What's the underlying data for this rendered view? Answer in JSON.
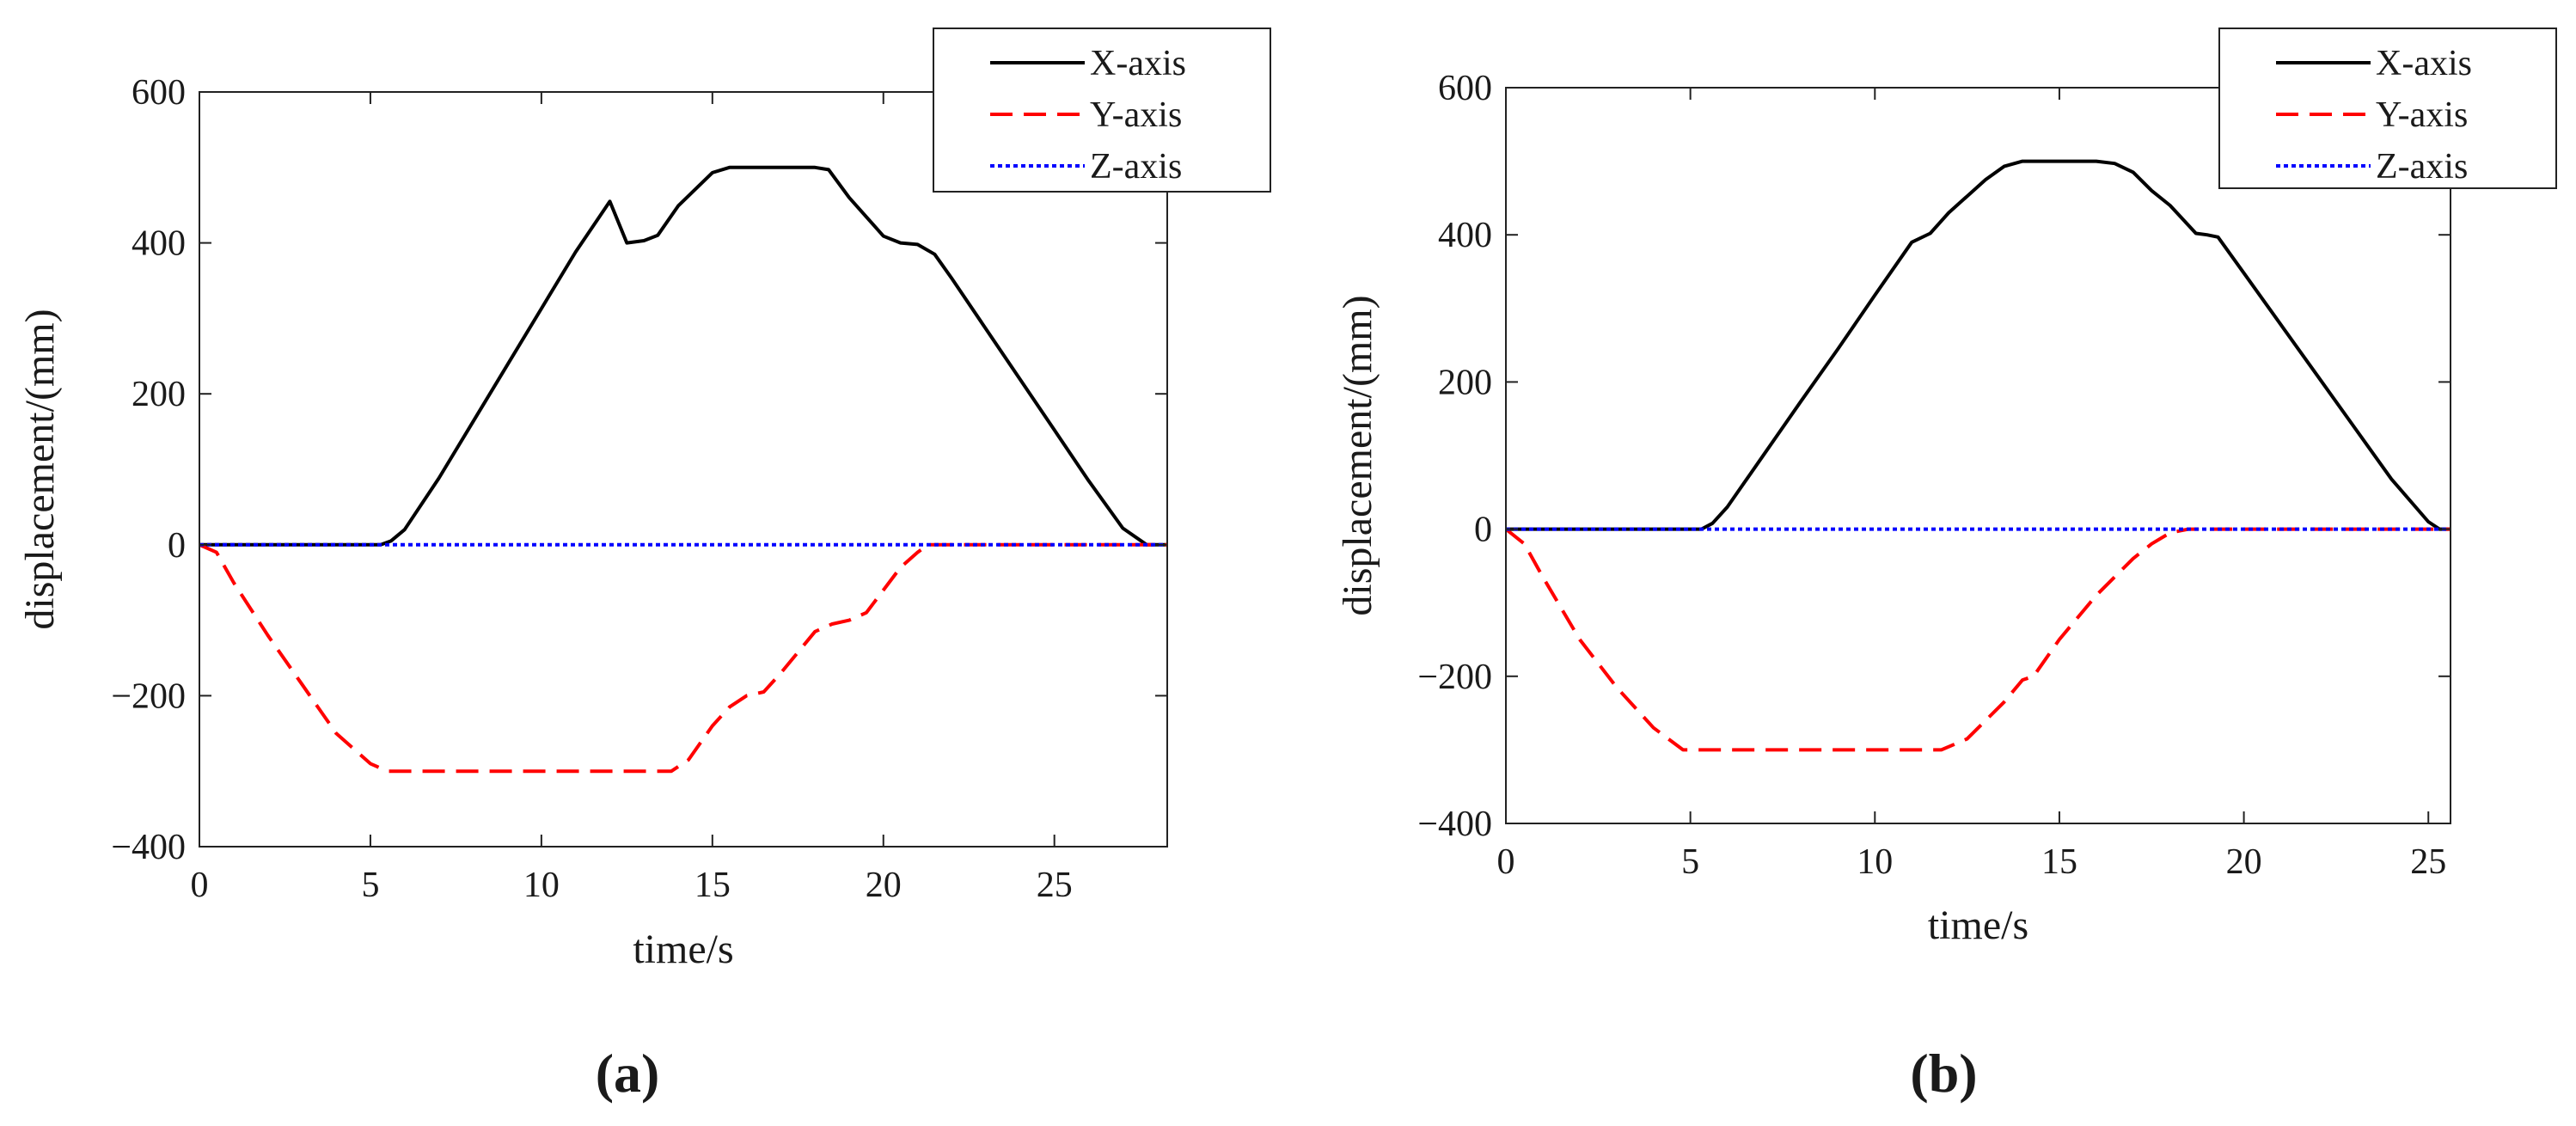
{
  "chart_data": [
    {
      "type": "line",
      "panel_label": "(a)",
      "xlabel": "time/s",
      "ylabel": "displacement/(mm)",
      "xlim": [
        0,
        28.3
      ],
      "ylim": [
        -400,
        600
      ],
      "xticks": [
        0,
        5,
        10,
        15,
        20,
        25
      ],
      "yticks": [
        -400,
        -200,
        0,
        200,
        400,
        600
      ],
      "xtick_labels": [
        "0",
        "5",
        "10",
        "15",
        "20",
        "25"
      ],
      "ytick_labels": [
        "−400",
        "−200",
        "0",
        "200",
        "400",
        "600"
      ],
      "grid": false,
      "legend_position": "top-right",
      "series": [
        {
          "name": "X-axis",
          "color": "#000000",
          "dash": "solid",
          "x": [
            0,
            5.3,
            5.6,
            6.0,
            7,
            8,
            9,
            10,
            11,
            12,
            12.5,
            13.0,
            13.4,
            14,
            15,
            15.5,
            16,
            17,
            18,
            18.4,
            19,
            20,
            20.5,
            21,
            21.5,
            22,
            23,
            24,
            25,
            26,
            27,
            27.7,
            28.3
          ],
          "y": [
            0,
            0,
            5,
            20,
            88,
            163,
            238,
            313,
            388,
            455,
            400,
            403,
            410,
            449,
            493,
            500,
            500,
            500,
            500,
            497,
            460,
            409,
            400,
            398,
            385,
            353,
            286,
            219,
            152,
            85,
            22,
            0,
            0
          ]
        },
        {
          "name": "Y-axis",
          "color": "#ff0000",
          "dash": "dashed",
          "x": [
            0,
            0.5,
            1,
            2,
            3,
            4,
            5,
            5.5,
            6,
            7,
            8,
            9,
            10,
            11,
            12,
            13,
            13.8,
            14.3,
            15,
            15.5,
            16,
            16.5,
            17,
            18,
            18.5,
            19,
            19.5,
            20,
            20.5,
            21,
            21.3,
            22,
            25,
            28.3
          ],
          "y": [
            0,
            -10,
            -50,
            -120,
            -185,
            -250,
            -290,
            -300,
            -300,
            -300,
            -300,
            -300,
            -300,
            -300,
            -300,
            -300,
            -300,
            -285,
            -240,
            -215,
            -200,
            -195,
            -170,
            -115,
            -105,
            -100,
            -90,
            -60,
            -30,
            -10,
            0,
            0,
            0,
            0
          ]
        },
        {
          "name": "Z-axis",
          "color": "#0000ff",
          "dash": "dotted",
          "x": [
            0,
            28.3
          ],
          "y": [
            0,
            0
          ]
        }
      ]
    },
    {
      "type": "line",
      "panel_label": "(b)",
      "xlabel": "time/s",
      "ylabel": "displacement/(mm)",
      "xlim": [
        0,
        25.6
      ],
      "ylim": [
        -400,
        600
      ],
      "xticks": [
        0,
        5,
        10,
        15,
        20,
        25
      ],
      "yticks": [
        -400,
        -200,
        0,
        200,
        400,
        600
      ],
      "xtick_labels": [
        "0",
        "5",
        "10",
        "15",
        "20",
        "25"
      ],
      "ytick_labels": [
        "−400",
        "−200",
        "0",
        "200",
        "400",
        "600"
      ],
      "grid": false,
      "legend_position": "top-right",
      "series": [
        {
          "name": "X-axis",
          "color": "#000000",
          "dash": "solid",
          "x": [
            0,
            5.3,
            5.6,
            6.0,
            7,
            8,
            9,
            10,
            11,
            11.5,
            12,
            13,
            13.5,
            14,
            15,
            16,
            16.5,
            17,
            17.5,
            18,
            18.7,
            19.0,
            19.3,
            20,
            21,
            22,
            23,
            24,
            25,
            25.3,
            25.6
          ],
          "y": [
            0,
            0,
            8,
            30,
            102,
            174,
            245,
            318,
            390,
            402,
            430,
            475,
            493,
            500,
            500,
            500,
            497,
            485,
            460,
            440,
            402,
            400,
            397,
            348,
            278,
            208,
            138,
            68,
            10,
            0,
            0
          ]
        },
        {
          "name": "Y-axis",
          "color": "#ff0000",
          "dash": "dashed",
          "x": [
            0,
            0.5,
            1,
            2,
            3,
            4,
            4.8,
            5.2,
            6,
            7,
            8,
            9,
            10,
            11,
            11.8,
            12.5,
            13,
            13.5,
            14,
            14.3,
            15,
            16,
            17,
            17.5,
            18,
            18.5,
            19,
            22,
            25.6
          ],
          "y": [
            0,
            -20,
            -65,
            -150,
            -215,
            -270,
            -300,
            -300,
            -300,
            -300,
            -300,
            -300,
            -300,
            -300,
            -300,
            -285,
            -260,
            -235,
            -205,
            -200,
            -150,
            -90,
            -40,
            -20,
            -5,
            0,
            0,
            0,
            0
          ]
        },
        {
          "name": "Z-axis",
          "color": "#0000ff",
          "dash": "dotted",
          "x": [
            0,
            25.6
          ],
          "y": [
            0,
            0
          ]
        }
      ]
    }
  ]
}
